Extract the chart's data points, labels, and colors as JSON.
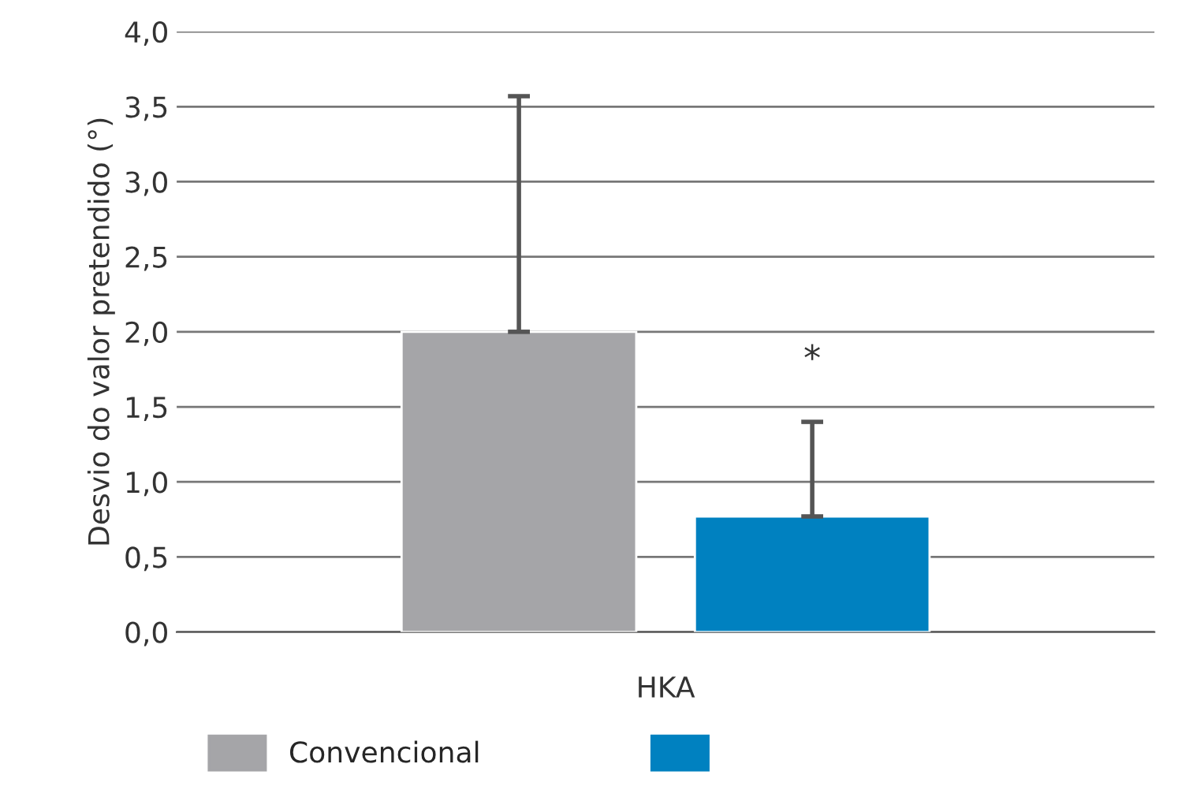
{
  "chart_data": {
    "type": "bar",
    "ylabel": "Desvio do valor pretendido (°)",
    "categories": [
      "HKA"
    ],
    "series": [
      {
        "name": "Convencional",
        "color": "#a5a5a8",
        "values": [
          2.0
        ],
        "errors": [
          [
            2.0,
            3.57
          ]
        ]
      },
      {
        "color": "#0081c0",
        "values": [
          0.77
        ],
        "errors": [
          [
            0.77,
            1.4
          ]
        ]
      }
    ],
    "ylim": [
      0,
      4.0
    ],
    "yticks": [
      {
        "value": 0,
        "label": "0,0"
      },
      {
        "value": 0.5,
        "label": "0,5"
      },
      {
        "value": 1,
        "label": "1,0"
      },
      {
        "value": 1.5,
        "label": "1,5"
      },
      {
        "value": 2,
        "label": "2,0"
      },
      {
        "value": 2.5,
        "label": "2,5"
      },
      {
        "value": 3,
        "label": "3,0"
      },
      {
        "value": 3.5,
        "label": "3,5"
      },
      {
        "value": 4,
        "label": "4,0"
      }
    ],
    "annotations": [
      "*"
    ],
    "grid": "y",
    "legend": "bottom"
  }
}
